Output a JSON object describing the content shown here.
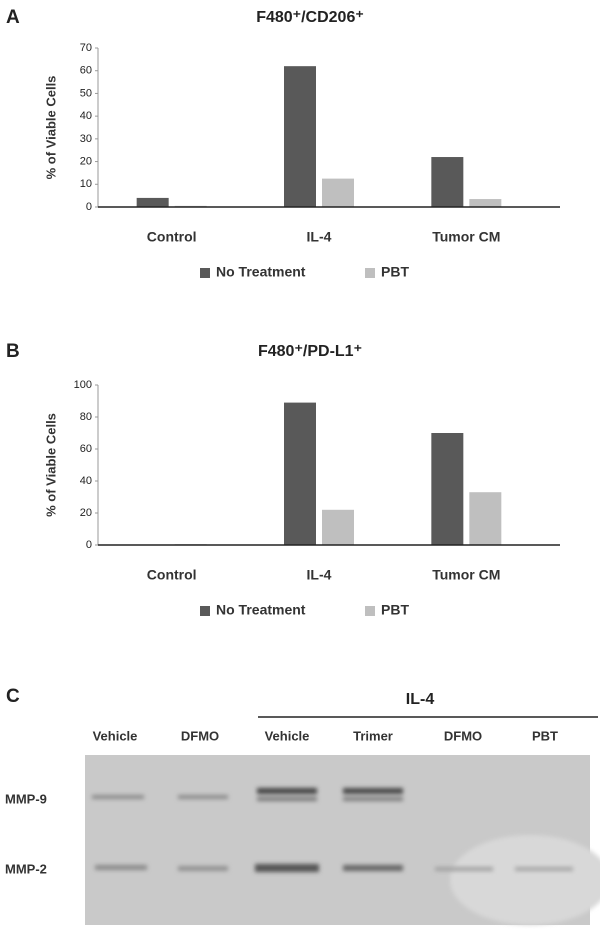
{
  "chart_data": [
    {
      "type": "bar",
      "panel_label": "A",
      "title": "F480⁺/CD206⁺",
      "y_label": "% of Viable Cells",
      "categories": [
        "Control",
        "IL-4",
        "Tumor CM"
      ],
      "series": [
        {
          "name": "No Treatment",
          "color": "#595959",
          "values": [
            4,
            62,
            22
          ]
        },
        {
          "name": "PBT",
          "color": "#bfbfbf",
          "values": [
            0.5,
            12.5,
            3.5
          ]
        }
      ],
      "ylim": [
        0,
        70
      ],
      "yticks": [
        0,
        10,
        20,
        30,
        40,
        50,
        60,
        70
      ],
      "grid": false,
      "legend": "bottom"
    },
    {
      "type": "bar",
      "panel_label": "B",
      "title": "F480⁺/PD-L1⁺",
      "y_label": "% of Viable Cells",
      "categories": [
        "Control",
        "IL-4",
        "Tumor CM"
      ],
      "series": [
        {
          "name": "No Treatment",
          "color": "#595959",
          "values": [
            0,
            89,
            70
          ]
        },
        {
          "name": "PBT",
          "color": "#bfbfbf",
          "values": [
            0.5,
            22,
            33
          ]
        }
      ],
      "ylim": [
        0,
        100
      ],
      "yticks": [
        0,
        20,
        40,
        60,
        80,
        100
      ],
      "grid": false,
      "legend": "bottom"
    }
  ],
  "gel": {
    "panel_label": "C",
    "group_label": "IL-4",
    "lanes": [
      "Vehicle",
      "DFMO",
      "Vehicle",
      "Trimer",
      "DFMO",
      "PBT"
    ],
    "bands": [
      "MMP-9",
      "MMP-2"
    ]
  }
}
